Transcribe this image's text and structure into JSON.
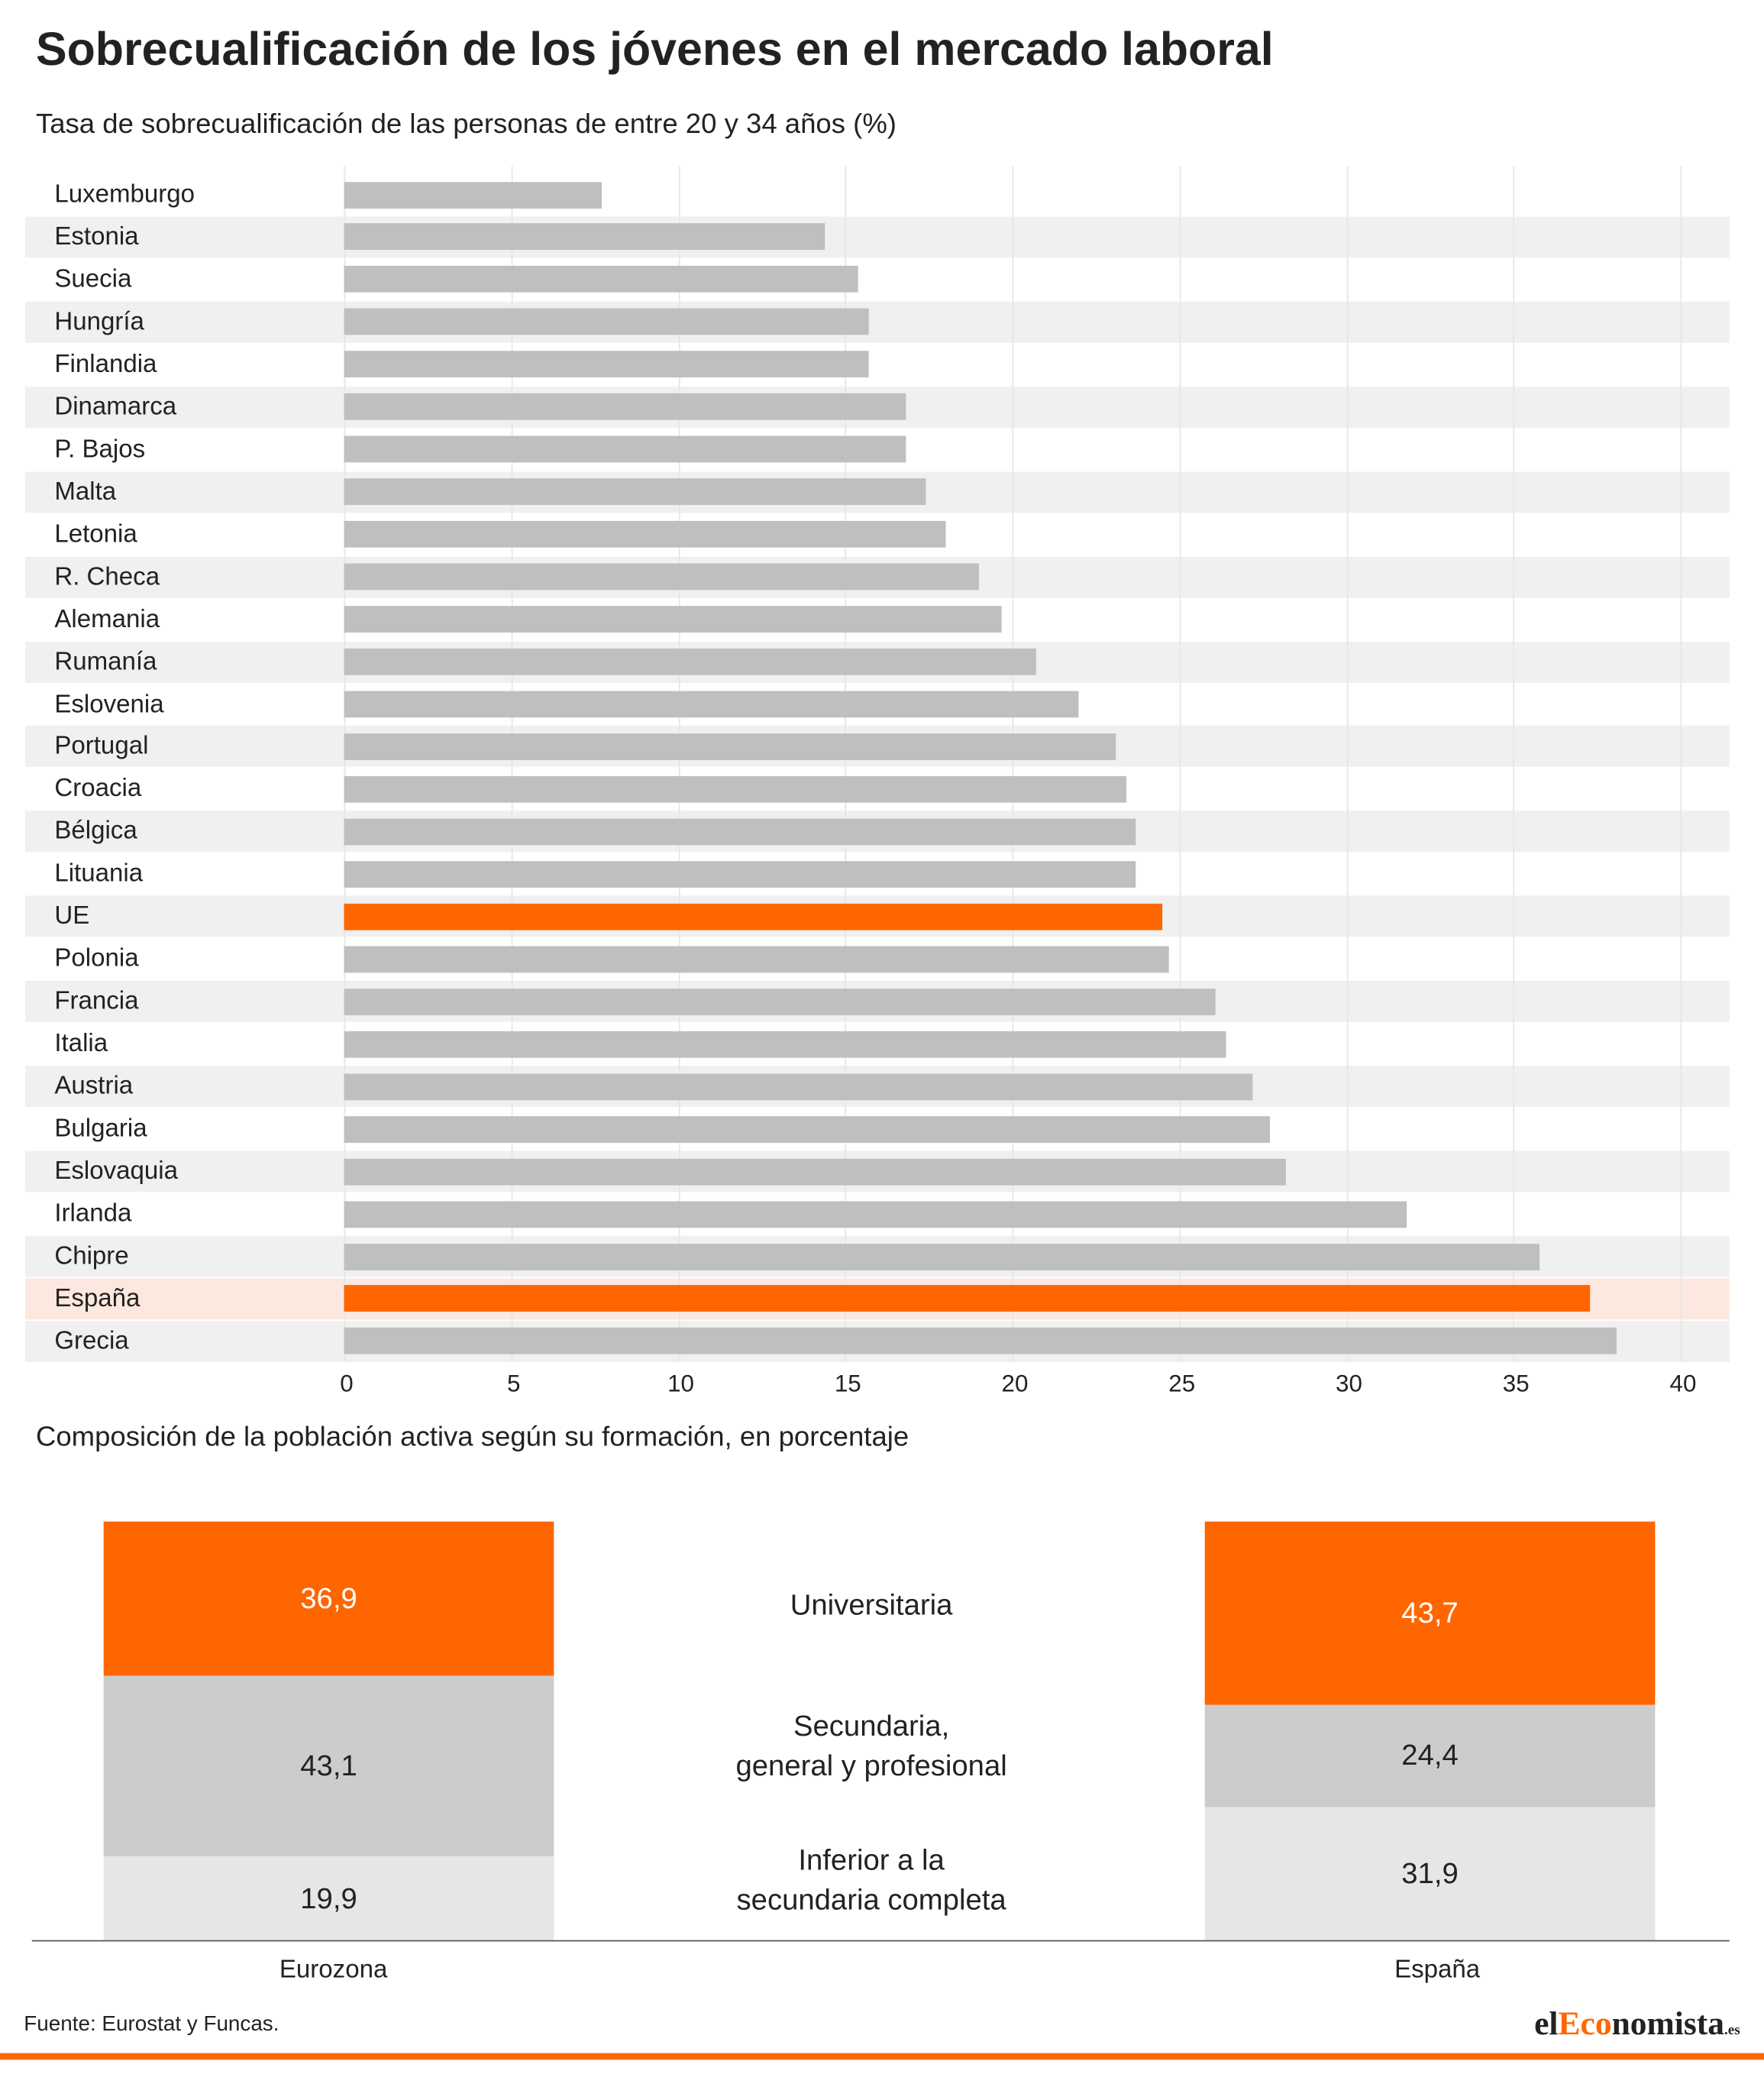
{
  "title": "Sobrecualificación de los jóvenes en el mercado laboral",
  "subtitle": "Tasa de sobrecualificación de las personas de entre 20 y 34 años (%)",
  "subtitle2": "Composición de la población activa según su formación, en porcentaje",
  "source": "Fuente: Eurostat y Funcas.",
  "logo": {
    "pre": "el",
    "accent": "Eco",
    "post": "nomista",
    "suffix": ".es"
  },
  "colors": {
    "bar": "#bfbfbf",
    "highlight": "#ff6600",
    "band": "#f0f0f0",
    "highlight_band": "#fde8df",
    "mid_gray": "#cccccc",
    "light_gray": "#e6e6e6"
  },
  "chart_data": [
    {
      "type": "bar",
      "orientation": "horizontal",
      "title": "Tasa de sobrecualificación de las personas de entre 20 y 34 años (%)",
      "categories": [
        "Luxemburgo",
        "Estonia",
        "Suecia",
        "Hungría",
        "Finlandia",
        "Dinamarca",
        "P. Bajos",
        "Malta",
        "Letonia",
        "R. Checa",
        "Alemania",
        "Rumanía",
        "Eslovenia",
        "Portugal",
        "Croacia",
        "Bélgica",
        "Lituania",
        "UE",
        "Polonia",
        "Francia",
        "Italia",
        "Austria",
        "Bulgaria",
        "Eslovaquia",
        "Irlanda",
        "Chipre",
        "España",
        "Grecia"
      ],
      "values": [
        7.7,
        14.4,
        15.4,
        15.7,
        15.7,
        16.8,
        16.8,
        17.4,
        18.0,
        19.0,
        19.7,
        20.7,
        22.0,
        23.1,
        23.4,
        23.7,
        23.7,
        24.5,
        24.7,
        26.1,
        26.4,
        27.2,
        27.7,
        28.2,
        31.8,
        35.8,
        37.3,
        38.1
      ],
      "highlighted": [
        "UE",
        "España"
      ],
      "xlim": [
        0,
        40
      ],
      "xticks": [
        "0",
        "5",
        "10",
        "15",
        "20",
        "25",
        "30",
        "35",
        "40"
      ],
      "grid": true
    },
    {
      "type": "bar",
      "stacked": true,
      "title": "Composición de la población activa según su formación, en porcentaje",
      "categories": [
        "Eurozona",
        "España"
      ],
      "series": [
        {
          "name": "Universitaria",
          "values": [
            36.9,
            43.7
          ],
          "labels": [
            "36,9",
            "43,7"
          ]
        },
        {
          "name": "Secundaria, general y profesional",
          "name_lines": [
            "Secundaria,",
            "general y profesional"
          ],
          "values": [
            43.1,
            24.4
          ],
          "labels": [
            "43,1",
            "24,4"
          ]
        },
        {
          "name": "Inferior a la secundaria completa",
          "name_lines": [
            "Inferior a la",
            "secundaria completa"
          ],
          "values": [
            19.9,
            31.9
          ],
          "labels": [
            "19,9",
            "31,9"
          ]
        }
      ]
    }
  ]
}
